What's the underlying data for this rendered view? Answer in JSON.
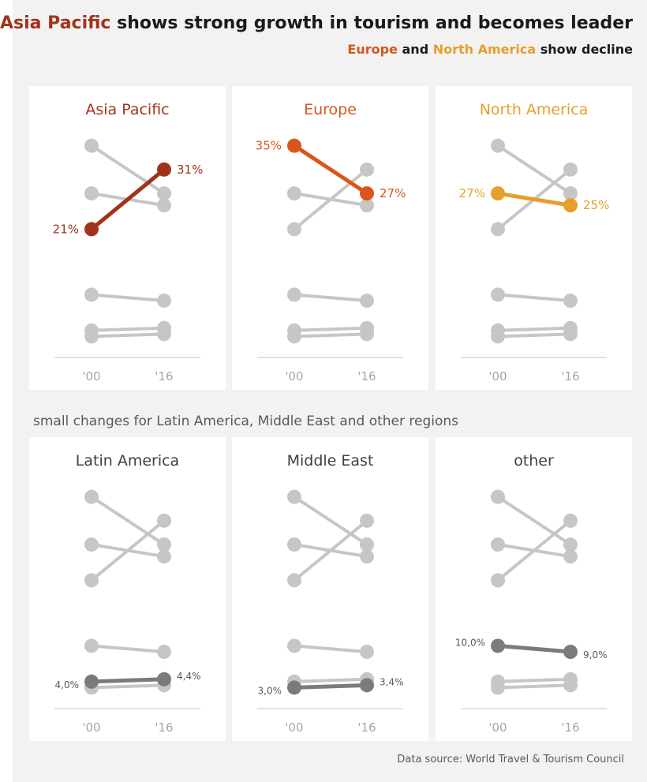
{
  "title": {
    "highlight": "Asia Pacific",
    "rest": " shows strong growth in tourism and becomes leader"
  },
  "subtitle": {
    "europe": "Europe",
    "and": " and ",
    "north_america": "North America",
    "rest": " show decline"
  },
  "section_label": "small changes for Latin America, Middle East and other regions",
  "source": "Data source: World Travel & Tourism Council",
  "colors": {
    "asia_pacific": "#a1331b",
    "europe": "#d9561c",
    "north_america": "#e5a02a",
    "muted": "#c6c6c6",
    "dark": "#7b7b7b"
  },
  "chart_data": {
    "type": "line",
    "subtype": "slope small multiples",
    "x": [
      "'00",
      "'16"
    ],
    "regions": [
      {
        "name": "Asia Pacific",
        "values": [
          21,
          31
        ],
        "labels": [
          "21%",
          "31%"
        ],
        "color": "#a1331b"
      },
      {
        "name": "Europe",
        "values": [
          35,
          27
        ],
        "labels": [
          "35%",
          "27%"
        ],
        "color": "#d9561c"
      },
      {
        "name": "North America",
        "values": [
          27,
          25
        ],
        "labels": [
          "27%",
          "25%"
        ],
        "color": "#e5a02a"
      },
      {
        "name": "Latin America",
        "values": [
          4.0,
          4.4
        ],
        "labels": [
          "4,0%",
          "4,4%"
        ],
        "color": "#7b7b7b"
      },
      {
        "name": "Middle East",
        "values": [
          3.0,
          3.4
        ],
        "labels": [
          "3,0%",
          "3,4%"
        ],
        "color": "#7b7b7b"
      },
      {
        "name": "other",
        "values": [
          10.0,
          9.0
        ],
        "labels": [
          "10,0%",
          "9,0%"
        ],
        "color": "#7b7b7b"
      }
    ],
    "ylim": [
      0,
      38
    ]
  }
}
